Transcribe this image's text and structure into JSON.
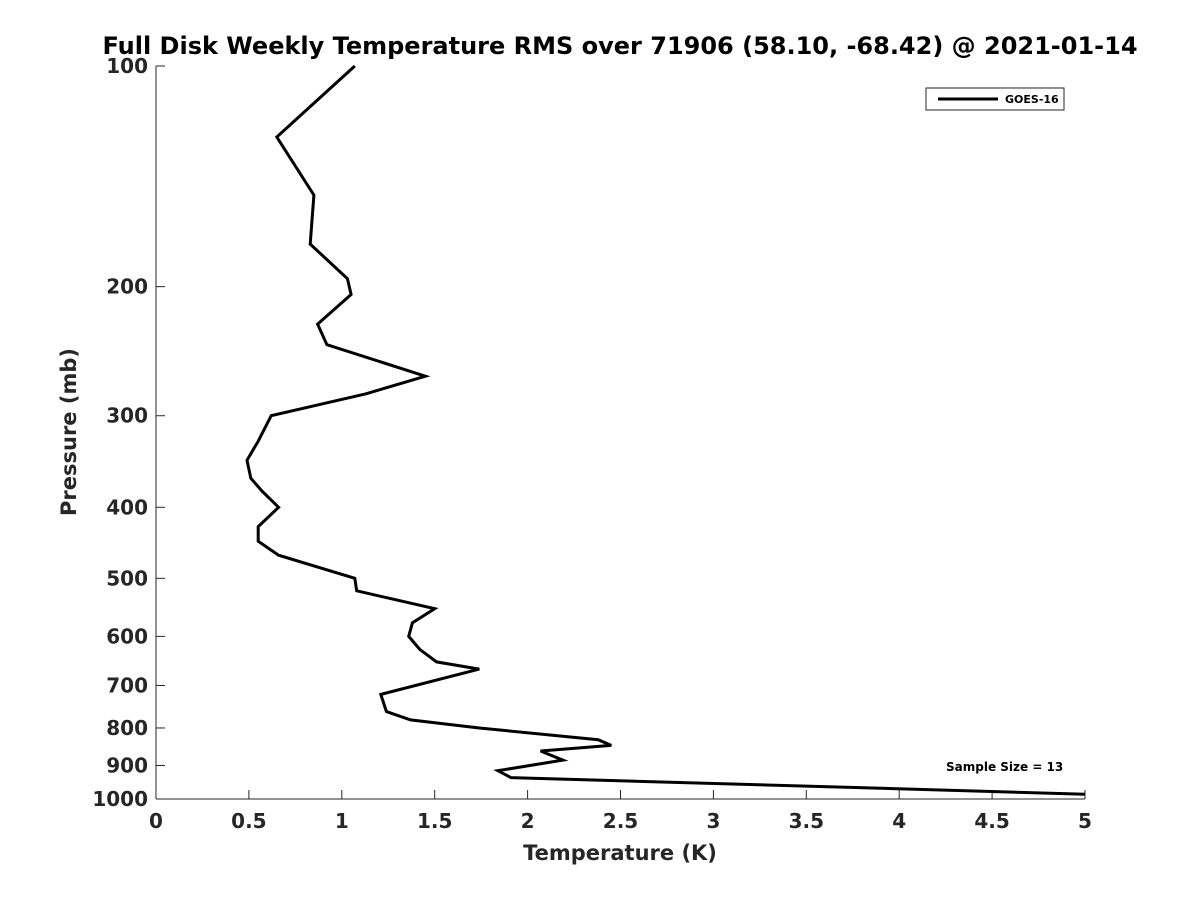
{
  "chart_data": {
    "type": "line",
    "title": "Full Disk Weekly Temperature RMS over 71906 (58.10, -68.42) @ 2021-01-14",
    "xlabel": "Temperature (K)",
    "ylabel": "Pressure (mb)",
    "xlim": [
      0,
      5
    ],
    "ylim": [
      1000,
      100
    ],
    "y_scale": "log",
    "y_reversed": true,
    "grid": false,
    "x_ticks": [
      0,
      0.5,
      1,
      1.5,
      2,
      2.5,
      3,
      3.5,
      4,
      4.5,
      5
    ],
    "x_tick_labels": [
      "0",
      "0.5",
      "1",
      "1.5",
      "2",
      "2.5",
      "3",
      "3.5",
      "4",
      "4.5",
      "5"
    ],
    "y_ticks": [
      100,
      200,
      300,
      400,
      500,
      600,
      700,
      800,
      900,
      1000
    ],
    "y_tick_labels": [
      "100",
      "200",
      "300",
      "400",
      "500",
      "600",
      "700",
      "800",
      "900",
      "1000"
    ],
    "legend": {
      "placement": "top-right",
      "entries": [
        "GOES-16"
      ]
    },
    "annotation": "Sample Size = 13",
    "series": [
      {
        "name": "GOES-16",
        "color": "#000000",
        "points": [
          [
            1.07,
            100
          ],
          [
            0.65,
            125
          ],
          [
            0.85,
            150
          ],
          [
            0.83,
            175
          ],
          [
            1.03,
            195
          ],
          [
            1.05,
            205
          ],
          [
            0.87,
            225
          ],
          [
            0.92,
            240
          ],
          [
            1.45,
            265
          ],
          [
            1.13,
            280
          ],
          [
            0.62,
            300
          ],
          [
            0.55,
            325
          ],
          [
            0.49,
            345
          ],
          [
            0.51,
            365
          ],
          [
            0.57,
            380
          ],
          [
            0.66,
            400
          ],
          [
            0.55,
            425
          ],
          [
            0.55,
            445
          ],
          [
            0.66,
            465
          ],
          [
            1.07,
            500
          ],
          [
            1.08,
            520
          ],
          [
            1.5,
            550
          ],
          [
            1.38,
            575
          ],
          [
            1.36,
            600
          ],
          [
            1.42,
            625
          ],
          [
            1.51,
            650
          ],
          [
            1.74,
            665
          ],
          [
            1.21,
            720
          ],
          [
            1.24,
            760
          ],
          [
            1.37,
            780
          ],
          [
            1.74,
            800
          ],
          [
            2.38,
            830
          ],
          [
            2.45,
            845
          ],
          [
            2.07,
            860
          ],
          [
            2.19,
            885
          ],
          [
            1.84,
            915
          ],
          [
            1.91,
            935
          ],
          [
            5.0,
            985
          ]
        ]
      }
    ]
  }
}
